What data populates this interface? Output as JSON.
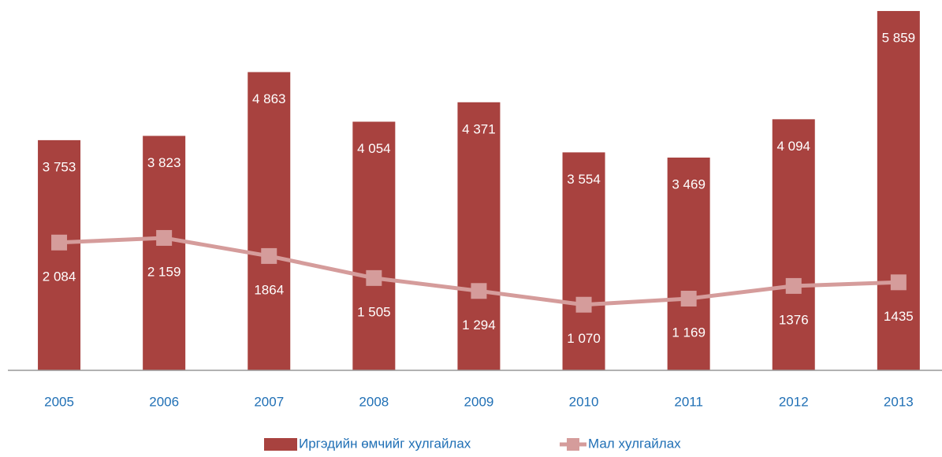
{
  "chart_data": {
    "type": "bar",
    "categories": [
      "2005",
      "2006",
      "2007",
      "2008",
      "2009",
      "2010",
      "2011",
      "2012",
      "2013"
    ],
    "ylim": [
      0,
      6000
    ],
    "series": [
      {
        "name": "Иргэдийн өмчийг хулгайлах",
        "type": "bar",
        "color": "#a8423f",
        "values": [
          3753,
          3823,
          4863,
          4054,
          4371,
          3554,
          3469,
          4094,
          5859
        ],
        "value_labels": [
          "3 753",
          "3 823",
          "4 863",
          "4 054",
          "4 371",
          "3 554",
          "3 469",
          "4 094",
          "5 859"
        ]
      },
      {
        "name": "Мал хулгайлах",
        "type": "line",
        "color": "#d59c9b",
        "values": [
          2084,
          2159,
          1864,
          1505,
          1294,
          1070,
          1169,
          1376,
          1435
        ],
        "value_labels": [
          "2 084",
          "2 159",
          "1864",
          "1 505",
          "1 294",
          "1 070",
          "1 169",
          "1376",
          "1435"
        ]
      }
    ],
    "legend": "bottom"
  }
}
